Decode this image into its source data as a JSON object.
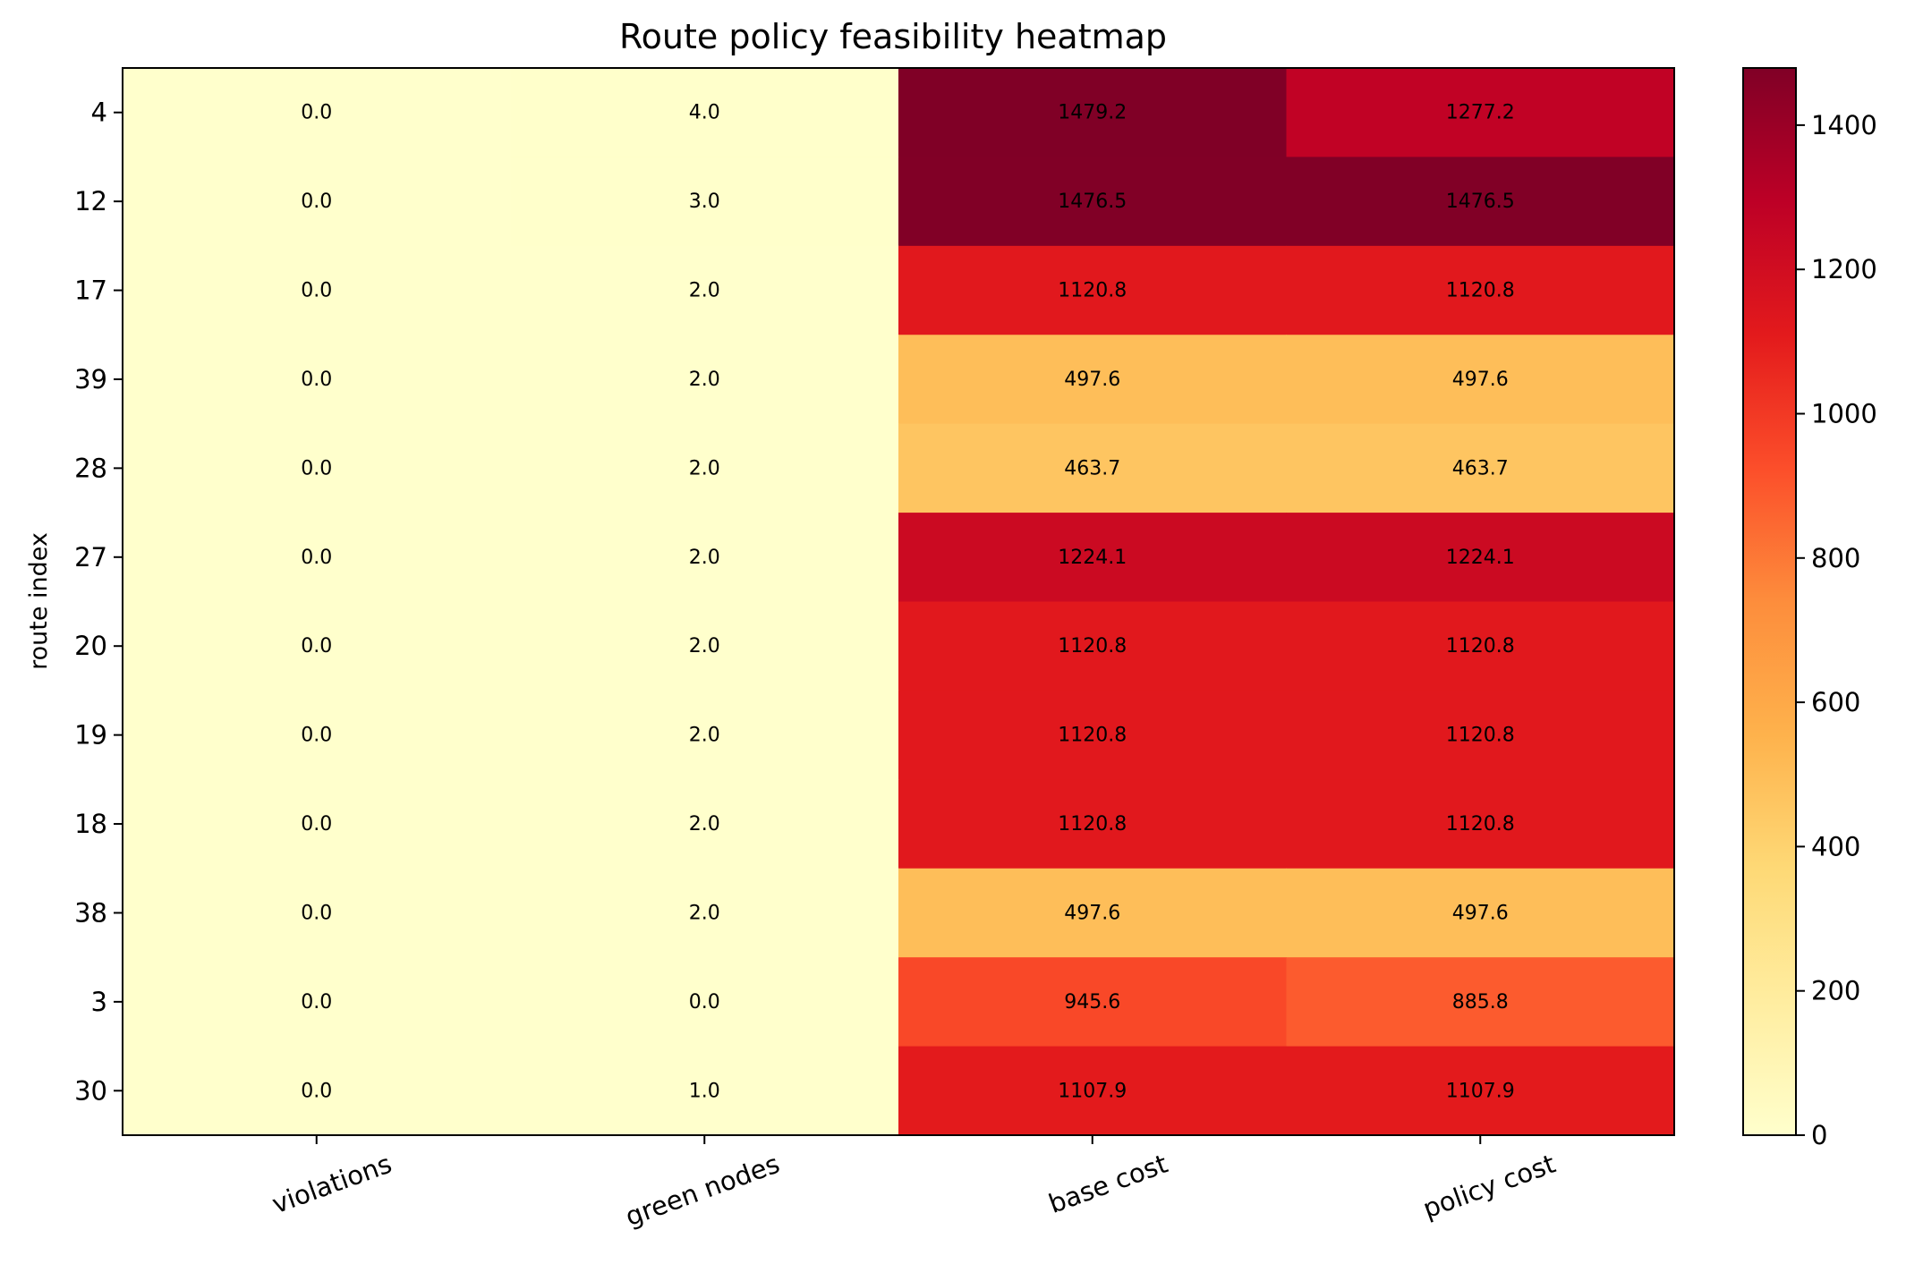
{
  "chart_data": {
    "type": "heatmap",
    "title": "Route policy feasibility heatmap",
    "ylabel": "route index",
    "xlabel": "",
    "columns": [
      "violations",
      "green nodes",
      "base cost",
      "policy cost"
    ],
    "rows": [
      "4",
      "12",
      "17",
      "39",
      "28",
      "27",
      "20",
      "19",
      "18",
      "38",
      "3",
      "30"
    ],
    "values": [
      [
        0.0,
        4.0,
        1479.2,
        1277.2
      ],
      [
        0.0,
        3.0,
        1476.5,
        1476.5
      ],
      [
        0.0,
        2.0,
        1120.8,
        1120.8
      ],
      [
        0.0,
        2.0,
        497.6,
        497.6
      ],
      [
        0.0,
        2.0,
        463.7,
        463.7
      ],
      [
        0.0,
        2.0,
        1224.1,
        1224.1
      ],
      [
        0.0,
        2.0,
        1120.8,
        1120.8
      ],
      [
        0.0,
        2.0,
        1120.8,
        1120.8
      ],
      [
        0.0,
        2.0,
        1120.8,
        1120.8
      ],
      [
        0.0,
        2.0,
        497.6,
        497.6
      ],
      [
        0.0,
        0.0,
        945.6,
        885.8
      ],
      [
        0.0,
        1.0,
        1107.9,
        1107.9
      ]
    ],
    "colormap": "YlOrRd",
    "color_range": [
      0,
      1479.2
    ],
    "colorbar_ticks": [
      0,
      200,
      400,
      600,
      800,
      1000,
      1200,
      1400
    ],
    "x_tick_rotation": "rotated ~20deg",
    "grid": false
  }
}
